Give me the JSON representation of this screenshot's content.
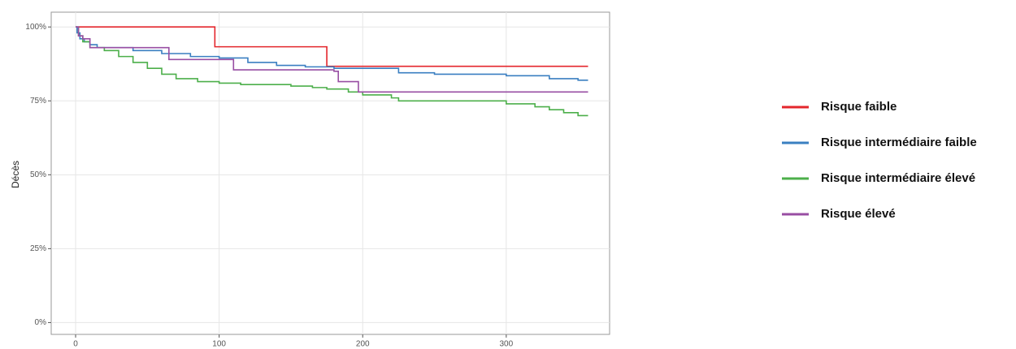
{
  "chart_data": {
    "type": "step",
    "ylabel": "Décès",
    "xlim": [
      -17,
      372
    ],
    "xticks": [
      0,
      100,
      200,
      300
    ],
    "ylim": [
      -4,
      105
    ],
    "yticks": [
      {
        "value": 0,
        "label": "0%"
      },
      {
        "value": 25,
        "label": "25%"
      },
      {
        "value": 50,
        "label": "50%"
      },
      {
        "value": 75,
        "label": "75%"
      },
      {
        "value": 100,
        "label": "100%"
      }
    ],
    "grid": true,
    "legend": "right",
    "series": [
      {
        "name": "Risque faible",
        "color": "#e4262c",
        "x": [
          0,
          97,
          175,
          357
        ],
        "values": [
          100,
          93.3,
          86.7,
          86.7
        ]
      },
      {
        "name": "Risque intermédiaire faible",
        "color": "#3a7fc1",
        "x": [
          0,
          1,
          3,
          6,
          10,
          15,
          40,
          60,
          80,
          100,
          120,
          140,
          160,
          180,
          225,
          250,
          300,
          330,
          350,
          357
        ],
        "values": [
          100,
          98,
          96,
          95,
          94,
          93,
          92,
          91,
          90,
          89.5,
          88,
          87,
          86.5,
          86,
          84.5,
          84,
          83.5,
          82.5,
          82,
          82
        ]
      },
      {
        "name": "Risque intermédiaire élevé",
        "color": "#4caf4a",
        "x": [
          0,
          2,
          5,
          10,
          20,
          30,
          40,
          50,
          60,
          70,
          85,
          100,
          115,
          150,
          165,
          175,
          190,
          200,
          220,
          225,
          300,
          320,
          330,
          340,
          350,
          357
        ],
        "values": [
          100,
          97,
          95,
          93,
          92,
          90,
          88,
          86,
          84,
          82.5,
          81.5,
          81,
          80.5,
          80,
          79.5,
          79,
          78,
          77,
          76,
          75,
          74,
          73,
          72,
          71,
          70,
          70
        ]
      },
      {
        "name": "Risque élevé",
        "color": "#984ea3",
        "x": [
          0,
          2,
          5,
          10,
          35,
          65,
          110,
          180,
          183,
          197,
          357
        ],
        "values": [
          100,
          97,
          96,
          93,
          93,
          89,
          85.5,
          85,
          81.5,
          78,
          78
        ]
      }
    ]
  }
}
